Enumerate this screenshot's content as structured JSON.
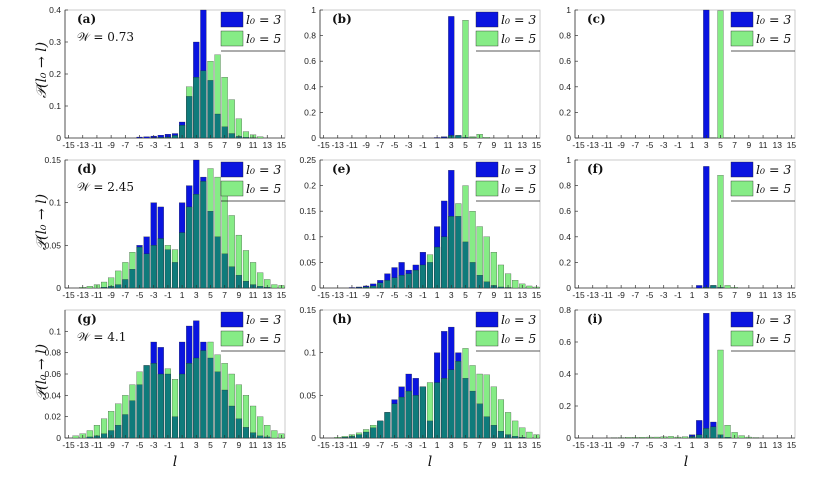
{
  "figure": {
    "ylabel": "𝒫(l₀ → l)",
    "xlabel": "l",
    "xticks": [
      "-15",
      "-13",
      "-11",
      "-9",
      "-7",
      "-5",
      "-3",
      "-1",
      "1",
      "3",
      "5",
      "7",
      "9",
      "11",
      "13",
      "15"
    ],
    "legend": {
      "series_a": "l₀ = 3",
      "series_b": "l₀ = 5"
    },
    "colors": {
      "series_a": "#0a14e0",
      "series_b": "#86ec86",
      "overlap": "#0f7b7b"
    }
  },
  "chart_data": [
    {
      "type": "bar",
      "panel": "(a)",
      "annotation": "𝒲 = 0.73",
      "ylim": [
        0,
        0.4
      ],
      "yticks": [
        "0",
        "0.1",
        "0.2",
        "0.3",
        "0.4"
      ],
      "x": [
        -15,
        -14,
        -13,
        -12,
        -11,
        -10,
        -9,
        -8,
        -7,
        -6,
        -5,
        -4,
        -3,
        -2,
        -1,
        0,
        1,
        2,
        3,
        4,
        5,
        6,
        7,
        8,
        9,
        10,
        11,
        12,
        13,
        14,
        15
      ],
      "series": [
        {
          "name": "l₀ = 3",
          "values": [
            0,
            0,
            0,
            0,
            0,
            0,
            0,
            0,
            0,
            0,
            0.003,
            0.004,
            0.006,
            0.009,
            0.012,
            0.014,
            0.05,
            0.13,
            0.3,
            0.4,
            0.18,
            0.075,
            0.035,
            0.014,
            0.005,
            0.002,
            0.001,
            0,
            0,
            0,
            0
          ]
        },
        {
          "name": "l₀ = 5",
          "values": [
            0,
            0,
            0,
            0,
            0,
            0,
            0,
            0,
            0,
            0,
            0,
            0,
            0.001,
            0.002,
            0.003,
            0.008,
            0.04,
            0.16,
            0.19,
            0.21,
            0.24,
            0.26,
            0.19,
            0.12,
            0.06,
            0.02,
            0.01,
            0.004,
            0,
            0,
            0
          ]
        }
      ]
    },
    {
      "type": "bar",
      "panel": "(b)",
      "annotation": "",
      "ylim": [
        0,
        1
      ],
      "yticks": [
        "0",
        "0.2",
        "0.4",
        "0.6",
        "0.8",
        "1"
      ],
      "x": [
        -15,
        -14,
        -13,
        -12,
        -11,
        -10,
        -9,
        -8,
        -7,
        -6,
        -5,
        -4,
        -3,
        -2,
        -1,
        0,
        1,
        2,
        3,
        4,
        5,
        6,
        7,
        8,
        9,
        10,
        11,
        12,
        13,
        14,
        15
      ],
      "series": [
        {
          "name": "l₀ = 3",
          "values": [
            0,
            0,
            0,
            0,
            0,
            0,
            0,
            0,
            0,
            0,
            0,
            0,
            0,
            0,
            0,
            0,
            0.004,
            0.01,
            0.95,
            0.02,
            0.005,
            0.002,
            0,
            0,
            0,
            0,
            0,
            0,
            0,
            0,
            0
          ]
        },
        {
          "name": "l₀ = 5",
          "values": [
            0,
            0,
            0,
            0,
            0,
            0,
            0,
            0,
            0,
            0,
            0,
            0,
            0,
            0,
            0,
            0,
            0,
            0.003,
            0.02,
            0.02,
            0.92,
            0.01,
            0.03,
            0.005,
            0,
            0,
            0,
            0,
            0,
            0,
            0
          ]
        }
      ]
    },
    {
      "type": "bar",
      "panel": "(c)",
      "annotation": "",
      "ylim": [
        0,
        1
      ],
      "yticks": [
        "0",
        "0.2",
        "0.4",
        "0.6",
        "0.8",
        "1"
      ],
      "x": [
        -15,
        -14,
        -13,
        -12,
        -11,
        -10,
        -9,
        -8,
        -7,
        -6,
        -5,
        -4,
        -3,
        -2,
        -1,
        0,
        1,
        2,
        3,
        4,
        5,
        6,
        7,
        8,
        9,
        10,
        11,
        12,
        13,
        14,
        15
      ],
      "series": [
        {
          "name": "l₀ = 3",
          "values": [
            0,
            0,
            0,
            0,
            0,
            0,
            0,
            0,
            0,
            0,
            0,
            0,
            0,
            0,
            0,
            0,
            0,
            0,
            1.0,
            0,
            0,
            0,
            0,
            0,
            0,
            0,
            0,
            0,
            0,
            0,
            0
          ]
        },
        {
          "name": "l₀ = 5",
          "values": [
            0,
            0,
            0,
            0,
            0,
            0,
            0,
            0,
            0,
            0,
            0,
            0,
            0,
            0,
            0,
            0,
            0,
            0,
            0,
            0.002,
            0.995,
            0.003,
            0,
            0,
            0,
            0,
            0,
            0,
            0,
            0,
            0
          ]
        }
      ]
    },
    {
      "type": "bar",
      "panel": "(d)",
      "annotation": "𝒲 = 2.45",
      "ylim": [
        0,
        0.15
      ],
      "yticks": [
        "0",
        "0.05",
        "0.1",
        "0.15"
      ],
      "x": [
        -15,
        -14,
        -13,
        -12,
        -11,
        -10,
        -9,
        -8,
        -7,
        -6,
        -5,
        -4,
        -3,
        -2,
        -1,
        0,
        1,
        2,
        3,
        4,
        5,
        6,
        7,
        8,
        9,
        10,
        11,
        12,
        13,
        14,
        15
      ],
      "series": [
        {
          "name": "l₀ = 3",
          "values": [
            0,
            0,
            0,
            0,
            0,
            0.001,
            0.002,
            0.004,
            0.01,
            0.022,
            0.05,
            0.06,
            0.1,
            0.095,
            0.045,
            0.03,
            0.1,
            0.12,
            0.15,
            0.13,
            0.09,
            0.06,
            0.04,
            0.025,
            0.015,
            0.008,
            0.004,
            0.002,
            0.001,
            0,
            0
          ]
        },
        {
          "name": "l₀ = 5",
          "values": [
            0,
            0,
            0.001,
            0.002,
            0.004,
            0.007,
            0.012,
            0.02,
            0.03,
            0.042,
            0.048,
            0.04,
            0.05,
            0.058,
            0.05,
            0.045,
            0.065,
            0.095,
            0.11,
            0.125,
            0.14,
            0.13,
            0.108,
            0.085,
            0.062,
            0.044,
            0.03,
            0.018,
            0.01,
            0.004,
            0.003
          ]
        }
      ]
    },
    {
      "type": "bar",
      "panel": "(e)",
      "annotation": "",
      "ylim": [
        0,
        0.25
      ],
      "yticks": [
        "0",
        "0.05",
        "0.1",
        "0.15",
        "0.2",
        "0.25"
      ],
      "x": [
        -15,
        -14,
        -13,
        -12,
        -11,
        -10,
        -9,
        -8,
        -7,
        -6,
        -5,
        -4,
        -3,
        -2,
        -1,
        0,
        1,
        2,
        3,
        4,
        5,
        6,
        7,
        8,
        9,
        10,
        11,
        12,
        13,
        14,
        15
      ],
      "series": [
        {
          "name": "l₀ = 3",
          "values": [
            0,
            0,
            0,
            0,
            0.001,
            0.002,
            0.004,
            0.008,
            0.015,
            0.028,
            0.04,
            0.05,
            0.035,
            0.045,
            0.07,
            0.05,
            0.12,
            0.17,
            0.23,
            0.14,
            0.09,
            0.05,
            0.025,
            0.012,
            0.005,
            0.002,
            0.001,
            0,
            0,
            0,
            0
          ]
        },
        {
          "name": "l₀ = 5",
          "values": [
            0,
            0,
            0,
            0,
            0,
            0.001,
            0.002,
            0.004,
            0.01,
            0.015,
            0.02,
            0.025,
            0.028,
            0.035,
            0.045,
            0.065,
            0.08,
            0.1,
            0.14,
            0.165,
            0.2,
            0.15,
            0.12,
            0.1,
            0.07,
            0.045,
            0.028,
            0.015,
            0.008,
            0.004,
            0.002
          ]
        }
      ]
    },
    {
      "type": "bar",
      "panel": "(f)",
      "annotation": "",
      "ylim": [
        0,
        1
      ],
      "yticks": [
        "0",
        "0.2",
        "0.4",
        "0.6",
        "0.8",
        "1"
      ],
      "x": [
        -15,
        -14,
        -13,
        -12,
        -11,
        -10,
        -9,
        -8,
        -7,
        -6,
        -5,
        -4,
        -3,
        -2,
        -1,
        0,
        1,
        2,
        3,
        4,
        5,
        6,
        7,
        8,
        9,
        10,
        11,
        12,
        13,
        14,
        15
      ],
      "series": [
        {
          "name": "l₀ = 3",
          "values": [
            0,
            0,
            0,
            0,
            0,
            0,
            0,
            0,
            0,
            0,
            0,
            0,
            0,
            0,
            0,
            0,
            0,
            0.02,
            0.95,
            0.02,
            0.005,
            0,
            0,
            0,
            0,
            0,
            0,
            0,
            0,
            0,
            0
          ]
        },
        {
          "name": "l₀ = 5",
          "values": [
            0,
            0,
            0,
            0,
            0,
            0,
            0,
            0,
            0,
            0,
            0,
            0,
            0,
            0,
            0,
            0,
            0,
            0,
            0.005,
            0.02,
            0.88,
            0.02,
            0.005,
            0,
            0,
            0,
            0,
            0,
            0,
            0,
            0
          ]
        }
      ]
    },
    {
      "type": "bar",
      "panel": "(g)",
      "annotation": "𝒲 = 4.1",
      "ylim": [
        0,
        0.12
      ],
      "yticks": [
        "0",
        "0.02",
        "0.04",
        "0.06",
        "0.08",
        "0.1"
      ],
      "x": [
        -15,
        -14,
        -13,
        -12,
        -11,
        -10,
        -9,
        -8,
        -7,
        -6,
        -5,
        -4,
        -3,
        -2,
        -1,
        0,
        1,
        2,
        3,
        4,
        5,
        6,
        7,
        8,
        9,
        10,
        11,
        12,
        13,
        14,
        15
      ],
      "series": [
        {
          "name": "l₀ = 3",
          "values": [
            0,
            0,
            0,
            0.001,
            0.002,
            0.004,
            0.007,
            0.012,
            0.022,
            0.035,
            0.05,
            0.068,
            0.09,
            0.085,
            0.06,
            0.02,
            0.09,
            0.105,
            0.11,
            0.09,
            0.075,
            0.062,
            0.045,
            0.03,
            0.018,
            0.01,
            0.005,
            0.002,
            0.001,
            0,
            0
          ]
        },
        {
          "name": "l₀ = 5",
          "values": [
            0,
            0.002,
            0.004,
            0.007,
            0.012,
            0.018,
            0.025,
            0.032,
            0.04,
            0.05,
            0.062,
            0.068,
            0.07,
            0.06,
            0.065,
            0.055,
            0.06,
            0.07,
            0.075,
            0.082,
            0.09,
            0.078,
            0.07,
            0.06,
            0.05,
            0.04,
            0.03,
            0.02,
            0.012,
            0.007,
            0.004
          ]
        }
      ]
    },
    {
      "type": "bar",
      "panel": "(h)",
      "annotation": "",
      "ylim": [
        0,
        0.15
      ],
      "yticks": [
        "0",
        "0.05",
        "0.1",
        "0.15"
      ],
      "x": [
        -15,
        -14,
        -13,
        -12,
        -11,
        -10,
        -9,
        -8,
        -7,
        -6,
        -5,
        -4,
        -3,
        -2,
        -1,
        0,
        1,
        2,
        3,
        4,
        5,
        6,
        7,
        8,
        9,
        10,
        11,
        12,
        13,
        14,
        15
      ],
      "series": [
        {
          "name": "l₀ = 3",
          "values": [
            0,
            0,
            0,
            0.001,
            0.002,
            0.004,
            0.007,
            0.012,
            0.02,
            0.03,
            0.045,
            0.06,
            0.075,
            0.07,
            0.06,
            0.02,
            0.1,
            0.125,
            0.13,
            0.1,
            0.07,
            0.055,
            0.04,
            0.025,
            0.015,
            0.008,
            0.004,
            0.002,
            0.001,
            0,
            0
          ]
        },
        {
          "name": "l₀ = 5",
          "values": [
            0,
            0,
            0.001,
            0.002,
            0.004,
            0.006,
            0.01,
            0.015,
            0.02,
            0.03,
            0.04,
            0.048,
            0.055,
            0.05,
            0.06,
            0.065,
            0.065,
            0.07,
            0.08,
            0.09,
            0.105,
            0.085,
            0.075,
            0.074,
            0.06,
            0.045,
            0.03,
            0.02,
            0.012,
            0.007,
            0.004
          ]
        }
      ]
    },
    {
      "type": "bar",
      "panel": "(i)",
      "annotation": "",
      "ylim": [
        0,
        0.8
      ],
      "yticks": [
        "0",
        "0.2",
        "0.4",
        "0.6",
        "0.8"
      ],
      "x": [
        -15,
        -14,
        -13,
        -12,
        -11,
        -10,
        -9,
        -8,
        -7,
        -6,
        -5,
        -4,
        -3,
        -2,
        -1,
        0,
        1,
        2,
        3,
        4,
        5,
        6,
        7,
        8,
        9,
        10,
        11,
        12,
        13,
        14,
        15
      ],
      "series": [
        {
          "name": "l₀ = 3",
          "values": [
            0,
            0,
            0,
            0,
            0,
            0,
            0,
            0,
            0,
            0,
            0,
            0,
            0,
            0,
            0,
            0,
            0.02,
            0.11,
            0.78,
            0.1,
            0.02,
            0.005,
            0,
            0,
            0,
            0,
            0,
            0,
            0,
            0,
            0
          ]
        },
        {
          "name": "l₀ = 5",
          "values": [
            0,
            0,
            0,
            0,
            0,
            0.002,
            0.003,
            0.004,
            0.004,
            0.005,
            0.006,
            0.006,
            0.008,
            0.01,
            0.006,
            0.008,
            0.01,
            0.02,
            0.06,
            0.07,
            0.55,
            0.08,
            0.035,
            0.015,
            0.006,
            0.003,
            0,
            0,
            0,
            0,
            0
          ]
        }
      ]
    }
  ]
}
